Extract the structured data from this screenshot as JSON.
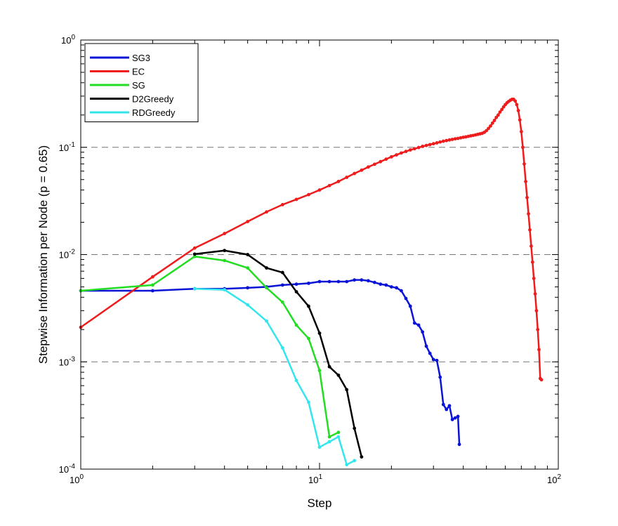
{
  "chart_data": {
    "type": "line",
    "title": "",
    "xlabel": "Step",
    "ylabel": "Stepwise Information per Node (p = 0.65)",
    "xscale": "log",
    "yscale": "log",
    "xlim": [
      1,
      100
    ],
    "ylim": [
      0.0001,
      1
    ],
    "grid": "horizontal dashed at y = 10^-3, 10^-2, 10^-1",
    "legend_position": "top-left",
    "x_ticks": [
      {
        "base": "10",
        "exp": "0"
      },
      {
        "base": "10",
        "exp": "1"
      },
      {
        "base": "10",
        "exp": "2"
      }
    ],
    "y_ticks": [
      {
        "base": "10",
        "exp": "-4"
      },
      {
        "base": "10",
        "exp": "-3"
      },
      {
        "base": "10",
        "exp": "-2"
      },
      {
        "base": "10",
        "exp": "-1"
      },
      {
        "base": "10",
        "exp": "0"
      }
    ],
    "series": [
      {
        "name": "SG3",
        "color": "#0a14d6",
        "marker": "dot",
        "points": [
          [
            1,
            0.0046
          ],
          [
            2,
            0.0046
          ],
          [
            3,
            0.0048
          ],
          [
            4,
            0.0048
          ],
          [
            5,
            0.0049
          ],
          [
            6,
            0.005
          ],
          [
            7,
            0.0052
          ],
          [
            8,
            0.0053
          ],
          [
            9,
            0.0054
          ],
          [
            10,
            0.0056
          ],
          [
            11,
            0.0056
          ],
          [
            12,
            0.0056
          ],
          [
            13,
            0.0056
          ],
          [
            14,
            0.0058
          ],
          [
            15,
            0.0058
          ],
          [
            16,
            0.0057
          ],
          [
            17,
            0.0055
          ],
          [
            18,
            0.0053
          ],
          [
            19,
            0.0052
          ],
          [
            20,
            0.005
          ],
          [
            21,
            0.0049
          ],
          [
            22,
            0.0046
          ],
          [
            23,
            0.0039
          ],
          [
            24,
            0.0033
          ],
          [
            25,
            0.0023
          ],
          [
            26,
            0.0022
          ],
          [
            27,
            0.0019
          ],
          [
            28,
            0.0014
          ],
          [
            29,
            0.0012
          ],
          [
            30,
            0.00105
          ],
          [
            31,
            0.00103
          ],
          [
            32,
            0.00072
          ],
          [
            33,
            0.0004
          ],
          [
            34,
            0.00036
          ],
          [
            35,
            0.00039
          ],
          [
            36,
            0.00029
          ],
          [
            37,
            0.0003
          ],
          [
            38,
            0.00031
          ],
          [
            38.5,
            0.00017
          ]
        ]
      },
      {
        "name": "EC",
        "color": "#ee1c1c",
        "marker": "dot",
        "points": [
          [
            1,
            0.0021
          ],
          [
            2,
            0.0062
          ],
          [
            3,
            0.0115
          ],
          [
            4,
            0.0157
          ],
          [
            5,
            0.0203
          ],
          [
            6,
            0.025
          ],
          [
            7,
            0.0292
          ],
          [
            8,
            0.0327
          ],
          [
            9,
            0.0362
          ],
          [
            10,
            0.04
          ],
          [
            11,
            0.044
          ],
          [
            12,
            0.048
          ],
          [
            13,
            0.0525
          ],
          [
            14,
            0.057
          ],
          [
            15,
            0.0612
          ],
          [
            16,
            0.0655
          ],
          [
            17,
            0.0695
          ],
          [
            18,
            0.0735
          ],
          [
            19,
            0.0775
          ],
          [
            20,
            0.0815
          ],
          [
            21,
            0.085
          ],
          [
            22,
            0.0885
          ],
          [
            23,
            0.0915
          ],
          [
            24,
            0.0945
          ],
          [
            25,
            0.097
          ],
          [
            26,
            0.0995
          ],
          [
            27,
            0.102
          ],
          [
            28,
            0.104
          ],
          [
            29,
            0.106
          ],
          [
            30,
            0.108
          ],
          [
            31,
            0.11
          ],
          [
            32,
            0.112
          ],
          [
            33,
            0.114
          ],
          [
            34,
            0.1155
          ],
          [
            35,
            0.117
          ],
          [
            36,
            0.1185
          ],
          [
            37,
            0.12
          ],
          [
            38,
            0.121
          ],
          [
            39,
            0.1225
          ],
          [
            40,
            0.124
          ],
          [
            41,
            0.125
          ],
          [
            42,
            0.1265
          ],
          [
            43,
            0.128
          ],
          [
            44,
            0.129
          ],
          [
            45,
            0.1305
          ],
          [
            46,
            0.132
          ],
          [
            47,
            0.1335
          ],
          [
            48,
            0.135
          ],
          [
            49,
            0.138
          ],
          [
            50,
            0.143
          ],
          [
            51,
            0.15
          ],
          [
            52,
            0.158
          ],
          [
            53,
            0.168
          ],
          [
            54,
            0.178
          ],
          [
            55,
            0.19
          ],
          [
            56,
            0.2
          ],
          [
            57,
            0.213
          ],
          [
            58,
            0.225
          ],
          [
            59,
            0.238
          ],
          [
            60,
            0.25
          ],
          [
            61,
            0.26
          ],
          [
            62,
            0.268
          ],
          [
            63,
            0.275
          ],
          [
            64,
            0.28
          ],
          [
            65,
            0.28
          ],
          [
            66,
            0.27
          ],
          [
            67,
            0.25
          ],
          [
            68,
            0.22
          ],
          [
            69,
            0.18
          ],
          [
            70,
            0.14
          ],
          [
            71,
            0.1
          ],
          [
            72,
            0.07
          ],
          [
            73,
            0.048
          ],
          [
            74,
            0.034
          ],
          [
            75,
            0.024
          ],
          [
            76,
            0.017
          ],
          [
            77,
            0.012
          ],
          [
            78,
            0.0085
          ],
          [
            79,
            0.006
          ],
          [
            80,
            0.0043
          ],
          [
            81,
            0.003
          ],
          [
            82,
            0.002
          ],
          [
            83,
            0.0013
          ],
          [
            84,
            0.0007
          ],
          [
            85,
            0.00068
          ]
        ]
      },
      {
        "name": "SG",
        "color": "#22dd22",
        "marker": "dot",
        "points": [
          [
            1,
            0.0046
          ],
          [
            2,
            0.0052
          ],
          [
            3,
            0.0096
          ],
          [
            4,
            0.0088
          ],
          [
            5,
            0.0075
          ],
          [
            6,
            0.0049
          ],
          [
            7,
            0.0036
          ],
          [
            8,
            0.0022
          ],
          [
            9,
            0.00165
          ],
          [
            10,
            0.00083
          ],
          [
            11,
            0.0002
          ],
          [
            12,
            0.00022
          ]
        ]
      },
      {
        "name": "D2Greedy",
        "color": "#000000",
        "marker": "dot",
        "points": [
          [
            3,
            0.0101
          ],
          [
            4,
            0.0109
          ],
          [
            5,
            0.01
          ],
          [
            6,
            0.0075
          ],
          [
            7,
            0.0068
          ],
          [
            8,
            0.0045
          ],
          [
            9,
            0.0033
          ],
          [
            10,
            0.00185
          ],
          [
            11,
            0.0009
          ],
          [
            12,
            0.00075
          ],
          [
            13,
            0.00055
          ],
          [
            14,
            0.00024
          ],
          [
            15,
            0.00013
          ]
        ]
      },
      {
        "name": "RDGreedy",
        "color": "#33e6ee",
        "marker": "dot",
        "points": [
          [
            3,
            0.0048
          ],
          [
            4,
            0.0047
          ],
          [
            5,
            0.0034
          ],
          [
            6,
            0.0024
          ],
          [
            7,
            0.00135
          ],
          [
            8,
            0.00067
          ],
          [
            9,
            0.00042
          ],
          [
            10,
            0.00016
          ],
          [
            11,
            0.00018
          ],
          [
            12,
            0.0002
          ],
          [
            13,
            0.00011
          ],
          [
            14,
            0.00012
          ]
        ]
      }
    ]
  }
}
